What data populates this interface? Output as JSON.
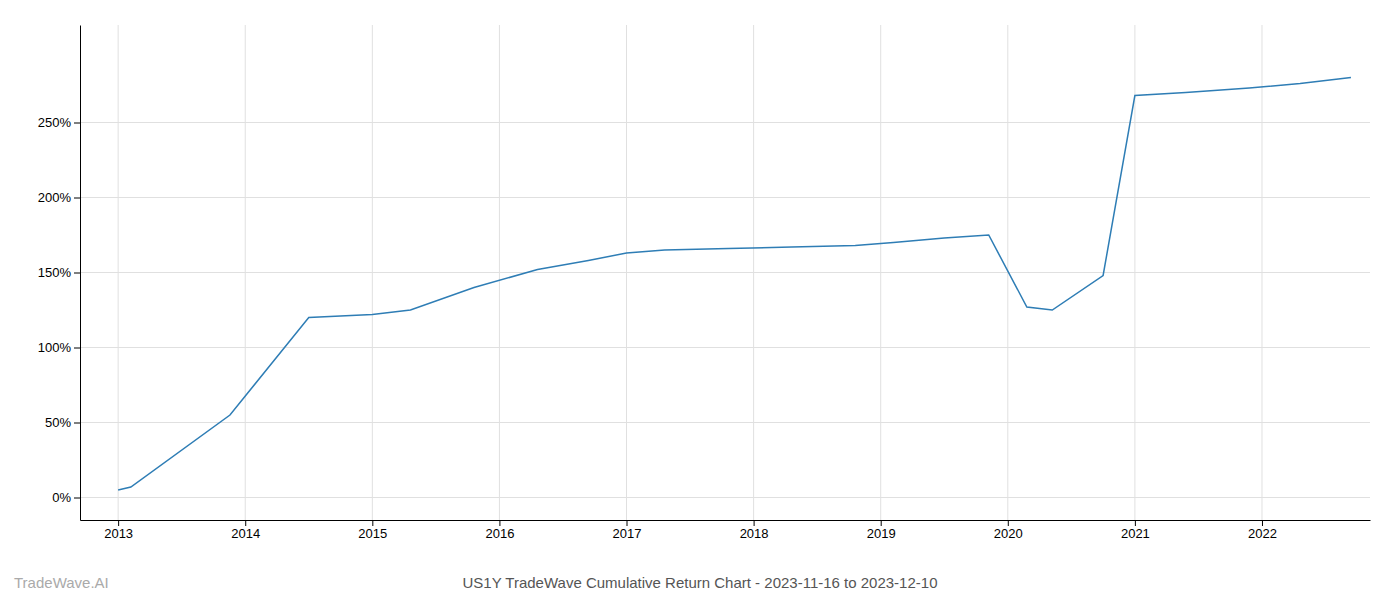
{
  "chart_data": {
    "type": "line",
    "title": "US1Y TradeWave Cumulative Return Chart - 2023-11-16 to 2023-12-10",
    "annotations": [
      "TradeWave.AI"
    ],
    "x": [
      2013.0,
      2013.1,
      2013.88,
      2014.5,
      2015.0,
      2015.3,
      2015.8,
      2016.3,
      2016.7,
      2017.0,
      2017.3,
      2017.8,
      2018.3,
      2018.8,
      2019.1,
      2019.5,
      2019.85,
      2020.15,
      2020.35,
      2020.75,
      2021.0,
      2021.4,
      2021.9,
      2022.3,
      2022.7
    ],
    "values": [
      5,
      7,
      55,
      120,
      122,
      125,
      140,
      152,
      158,
      163,
      165,
      166,
      167,
      168,
      170,
      173,
      175,
      127,
      125,
      148,
      268,
      270,
      273,
      276,
      280
    ],
    "color": "#2e7db5",
    "xlim": [
      2012.7,
      2022.85
    ],
    "ylim": [
      -15,
      315
    ],
    "xticks": [
      2013,
      2014,
      2015,
      2016,
      2017,
      2018,
      2019,
      2020,
      2021,
      2022
    ],
    "yticks": [
      {
        "value": 0,
        "label": "0%"
      },
      {
        "value": 50,
        "label": "50%"
      },
      {
        "value": 100,
        "label": "100%"
      },
      {
        "value": 150,
        "label": "150%"
      },
      {
        "value": 200,
        "label": "200%"
      },
      {
        "value": 250,
        "label": "250%"
      }
    ],
    "grid": true
  }
}
